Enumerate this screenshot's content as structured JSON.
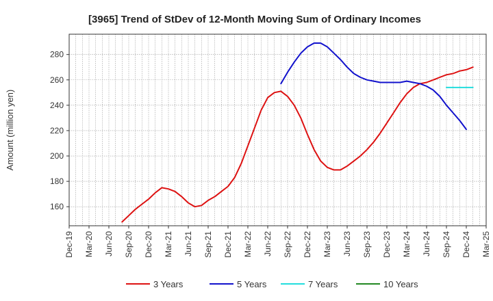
{
  "chart_data": {
    "type": "line",
    "title": "[3965]  Trend of StDev of 12-Month Moving Sum of Ordinary Incomes",
    "ylabel": "Amount (million yen)",
    "xlabel": "",
    "ylim": [
      145,
      296
    ],
    "yticks": [
      160,
      180,
      200,
      220,
      240,
      260,
      280
    ],
    "categories": [
      "Dec-19",
      "Mar-20",
      "Jun-20",
      "Sep-20",
      "Dec-20",
      "Mar-21",
      "Jun-21",
      "Sep-21",
      "Dec-21",
      "Mar-22",
      "Jun-22",
      "Sep-22",
      "Dec-22",
      "Mar-23",
      "Jun-23",
      "Sep-23",
      "Dec-23",
      "Mar-24",
      "Jun-24",
      "Sep-24",
      "Dec-24",
      "Mar-25"
    ],
    "grid": true,
    "legend_position": "bottom",
    "series": [
      {
        "name": "3 Years",
        "color": "#dd1111",
        "points": [
          [
            8,
            148
          ],
          [
            9,
            153
          ],
          [
            10,
            158
          ],
          [
            11,
            162
          ],
          [
            12,
            166
          ],
          [
            13,
            171
          ],
          [
            14,
            175
          ],
          [
            15,
            174
          ],
          [
            16,
            172
          ],
          [
            17,
            168
          ],
          [
            18,
            163
          ],
          [
            19,
            160
          ],
          [
            20,
            161
          ],
          [
            21,
            165
          ],
          [
            22,
            168
          ],
          [
            23,
            172
          ],
          [
            24,
            176
          ],
          [
            25,
            183
          ],
          [
            26,
            194
          ],
          [
            27,
            208
          ],
          [
            28,
            222
          ],
          [
            29,
            236
          ],
          [
            30,
            246
          ],
          [
            31,
            250
          ],
          [
            32,
            251
          ],
          [
            33,
            247
          ],
          [
            34,
            240
          ],
          [
            35,
            230
          ],
          [
            36,
            217
          ],
          [
            37,
            205
          ],
          [
            38,
            196
          ],
          [
            39,
            191
          ],
          [
            40,
            189
          ],
          [
            41,
            189
          ],
          [
            42,
            192
          ],
          [
            43,
            196
          ],
          [
            44,
            200
          ],
          [
            45,
            205
          ],
          [
            46,
            211
          ],
          [
            47,
            218
          ],
          [
            48,
            226
          ],
          [
            49,
            234
          ],
          [
            50,
            242
          ],
          [
            51,
            249
          ],
          [
            52,
            254
          ],
          [
            53,
            257
          ],
          [
            54,
            258
          ],
          [
            55,
            260
          ],
          [
            56,
            262
          ],
          [
            57,
            264
          ],
          [
            58,
            265
          ],
          [
            59,
            267
          ],
          [
            60,
            268
          ],
          [
            61,
            270
          ]
        ]
      },
      {
        "name": "5 Years",
        "color": "#1111cc",
        "points": [
          [
            32,
            257
          ],
          [
            33,
            266
          ],
          [
            34,
            274
          ],
          [
            35,
            281
          ],
          [
            36,
            286
          ],
          [
            37,
            289
          ],
          [
            38,
            289
          ],
          [
            39,
            286
          ],
          [
            40,
            281
          ],
          [
            41,
            276
          ],
          [
            42,
            270
          ],
          [
            43,
            265
          ],
          [
            44,
            262
          ],
          [
            45,
            260
          ],
          [
            46,
            259
          ],
          [
            47,
            258
          ],
          [
            48,
            258
          ],
          [
            49,
            258
          ],
          [
            50,
            258
          ],
          [
            51,
            259
          ],
          [
            52,
            258
          ],
          [
            53,
            257
          ],
          [
            54,
            255
          ],
          [
            55,
            252
          ],
          [
            56,
            247
          ],
          [
            57,
            240
          ],
          [
            58,
            234
          ],
          [
            59,
            228
          ],
          [
            60,
            221
          ]
        ]
      },
      {
        "name": "7 Years",
        "color": "#22dddd",
        "points": [
          [
            57,
            254
          ],
          [
            58,
            254
          ],
          [
            59,
            254
          ],
          [
            60,
            254
          ],
          [
            61,
            254
          ]
        ]
      },
      {
        "name": "10 Years",
        "color": "#228822",
        "points": []
      }
    ]
  }
}
